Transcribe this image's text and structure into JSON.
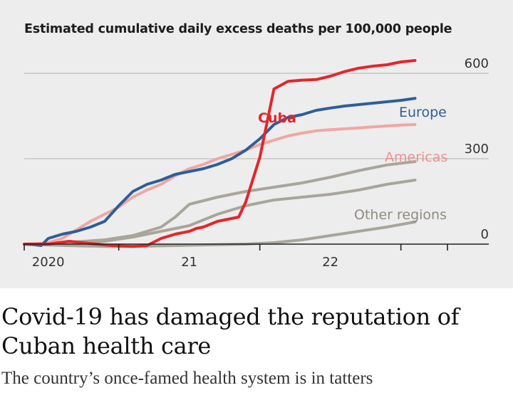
{
  "chart_data": {
    "type": "line",
    "title": "Estimated cumulative daily excess deaths per 100,000 people",
    "y_ticks": [
      0,
      300,
      600
    ],
    "ylim": [
      0,
      600
    ],
    "xlim": [
      2019.83,
      2022.83
    ],
    "x_ticks": [
      {
        "label": "2020",
        "value": 2020.0
      },
      {
        "label": "21",
        "value": 2021.0
      },
      {
        "label": "22",
        "value": 2022.0
      }
    ],
    "x_boundaries": [
      2019.83,
      2020.5,
      2021.5,
      2022.5,
      2022.83
    ],
    "series": [
      {
        "name": "Other regions 1",
        "color": "#a8a59b",
        "width": 4,
        "label": "",
        "x": [
          2019.83,
          2020.0,
          2020.2,
          2020.4,
          2020.6,
          2020.8,
          2021.0,
          2021.2,
          2021.4,
          2021.6,
          2021.8,
          2022.0,
          2022.2,
          2022.4,
          2022.6
        ],
        "y": [
          0,
          -3,
          -6,
          -8,
          -8,
          -6,
          -4,
          -2,
          0,
          5,
          15,
          30,
          45,
          60,
          78
        ]
      },
      {
        "name": "Other regions 2",
        "color": "#a8a59b",
        "width": 4,
        "label": "",
        "x": [
          2019.83,
          2020.0,
          2020.2,
          2020.4,
          2020.6,
          2020.8,
          2021.0,
          2021.2,
          2021.4,
          2021.6,
          2021.8,
          2022.0,
          2022.2,
          2022.4,
          2022.6
        ],
        "y": [
          0,
          2,
          5,
          10,
          25,
          45,
          65,
          105,
          135,
          155,
          165,
          175,
          190,
          210,
          225
        ]
      },
      {
        "name": "Other regions 3",
        "color": "#a8a59b",
        "width": 4,
        "label": "",
        "x": [
          2019.83,
          2020.0,
          2020.2,
          2020.4,
          2020.6,
          2020.8,
          2020.9,
          2021.0,
          2021.2,
          2021.4,
          2021.6,
          2021.8,
          2022.0,
          2022.2,
          2022.4,
          2022.6
        ],
        "y": [
          0,
          3,
          8,
          15,
          30,
          60,
          95,
          140,
          165,
          185,
          200,
          215,
          235,
          258,
          278,
          290
        ]
      },
      {
        "name": "Americas",
        "color": "#f1a6a2",
        "width": 4,
        "label": "Americas",
        "x": [
          2019.83,
          2019.9,
          2020.0,
          2020.1,
          2020.2,
          2020.3,
          2020.4,
          2020.5,
          2020.6,
          2020.7,
          2020.8,
          2020.9,
          2021.0,
          2021.1,
          2021.2,
          2021.3,
          2021.4,
          2021.5,
          2021.6,
          2021.7,
          2021.8,
          2021.9,
          2022.0,
          2022.1,
          2022.2,
          2022.3,
          2022.4,
          2022.5,
          2022.6
        ],
        "y": [
          0,
          1,
          5,
          20,
          50,
          80,
          105,
          130,
          165,
          190,
          210,
          240,
          265,
          280,
          300,
          315,
          330,
          350,
          365,
          380,
          390,
          398,
          402,
          405,
          408,
          412,
          415,
          418,
          420
        ]
      },
      {
        "name": "Europe",
        "color": "#2e5e9a",
        "width": 4,
        "label": "Europe",
        "x": [
          2019.83,
          2019.9,
          2019.95,
          2020.0,
          2020.1,
          2020.2,
          2020.3,
          2020.4,
          2020.5,
          2020.6,
          2020.7,
          2020.8,
          2020.9,
          2021.0,
          2021.1,
          2021.2,
          2021.3,
          2021.4,
          2021.5,
          2021.6,
          2021.7,
          2021.8,
          2021.9,
          2022.0,
          2022.1,
          2022.2,
          2022.3,
          2022.4,
          2022.5,
          2022.6
        ],
        "y": [
          0,
          -2,
          -5,
          20,
          35,
          45,
          60,
          80,
          135,
          185,
          210,
          225,
          245,
          255,
          265,
          280,
          300,
          330,
          370,
          420,
          445,
          455,
          470,
          478,
          485,
          490,
          495,
          500,
          505,
          512
        ]
      },
      {
        "name": "Cuba",
        "color": "#e3262a",
        "width": 4,
        "label": "Cuba",
        "x": [
          2019.83,
          2020.0,
          2020.15,
          2020.3,
          2020.45,
          2020.6,
          2020.7,
          2020.8,
          2020.9,
          2021.0,
          2021.05,
          2021.1,
          2021.15,
          2021.2,
          2021.25,
          2021.3,
          2021.35,
          2021.4,
          2021.5,
          2021.6,
          2021.7,
          2021.8,
          2021.9,
          2022.0,
          2022.1,
          2022.2,
          2022.3,
          2022.4,
          2022.5,
          2022.6
        ],
        "y": [
          0,
          0,
          10,
          2,
          -5,
          -8,
          -5,
          20,
          35,
          45,
          55,
          60,
          70,
          80,
          85,
          90,
          95,
          148,
          305,
          545,
          572,
          576,
          578,
          590,
          606,
          618,
          625,
          630,
          640,
          645
        ]
      }
    ],
    "annotations": [
      {
        "text": "Cuba",
        "series": "Cuba"
      },
      {
        "text": "Europe",
        "series": "Europe"
      },
      {
        "text": "Americas",
        "series": "Americas"
      },
      {
        "text": "Other regions",
        "series": "Other regions"
      }
    ]
  },
  "article": {
    "headline": "Covid-19 has damaged the reputation of Cuban health care",
    "subheading": "The country’s once-famed health system is in tatters"
  },
  "colors": {
    "background": "#ededed",
    "cuba": "#e3262a",
    "europe": "#2e5e9a",
    "americas": "#f1a6a2",
    "other": "#a8a59b",
    "axis": "#222222",
    "grid": "#c6c6c6"
  }
}
